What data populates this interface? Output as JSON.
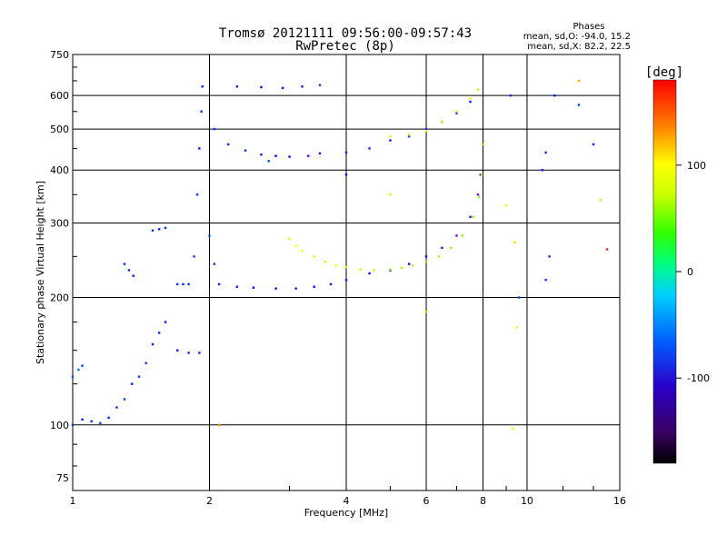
{
  "chart_data": {
    "type": "scatter",
    "title": "Tromsø 20121111 09:56:00-09:57:43",
    "subtitle": "RwPretec (8p)",
    "xlabel": "Frequency [MHz]",
    "ylabel": "Stationary phase Virtual Height [km]",
    "x_scale": "log",
    "y_scale": "log",
    "xlim": [
      1,
      16
    ],
    "ylim": [
      70,
      750
    ],
    "x_ticks": [
      1,
      2,
      4,
      6,
      8,
      10,
      16
    ],
    "x_tick_labels": [
      "1",
      "2",
      "4",
      "6",
      "8",
      "10",
      "16"
    ],
    "y_ticks": [
      75,
      100,
      200,
      300,
      400,
      500,
      600,
      750
    ],
    "y_tick_labels": [
      "75",
      "100",
      "200",
      "300",
      "400",
      "500",
      "600",
      "750"
    ],
    "grid": true,
    "stats": {
      "heading": "Phases",
      "line_o": "mean, sd,O: -94.0, 15.2",
      "line_x": "mean, sd,X:  82.2, 22.5"
    },
    "colorbar": {
      "label": "[deg]",
      "ticks": [
        100,
        0,
        -100
      ],
      "tick_labels": [
        "100",
        "0",
        "-100"
      ],
      "range": [
        -180,
        180
      ],
      "colormap": "rainbow"
    },
    "series": [
      {
        "points": [
          {
            "x": 1.0,
            "y": 130,
            "c": -85
          },
          {
            "x": 1.03,
            "y": 135,
            "c": -80
          },
          {
            "x": 1.05,
            "y": 138,
            "c": -90
          },
          {
            "x": 1.0,
            "y": 100,
            "c": -95
          },
          {
            "x": 1.05,
            "y": 103,
            "c": -100
          },
          {
            "x": 1.1,
            "y": 102,
            "c": -95
          },
          {
            "x": 1.15,
            "y": 101,
            "c": -90
          },
          {
            "x": 1.2,
            "y": 104,
            "c": -100
          },
          {
            "x": 1.25,
            "y": 110,
            "c": -95
          },
          {
            "x": 1.3,
            "y": 115,
            "c": -90
          },
          {
            "x": 1.35,
            "y": 125,
            "c": -100
          },
          {
            "x": 1.4,
            "y": 130,
            "c": -95
          },
          {
            "x": 1.45,
            "y": 140,
            "c": -90
          },
          {
            "x": 1.5,
            "y": 155,
            "c": -100
          },
          {
            "x": 1.55,
            "y": 165,
            "c": -95
          },
          {
            "x": 1.6,
            "y": 175,
            "c": -100
          },
          {
            "x": 1.3,
            "y": 240,
            "c": -95
          },
          {
            "x": 1.33,
            "y": 232,
            "c": -95
          },
          {
            "x": 1.36,
            "y": 225,
            "c": -100
          },
          {
            "x": 1.5,
            "y": 288,
            "c": -95
          },
          {
            "x": 1.55,
            "y": 290,
            "c": -100
          },
          {
            "x": 1.6,
            "y": 292,
            "c": -95
          },
          {
            "x": 1.7,
            "y": 215,
            "c": -95
          },
          {
            "x": 1.75,
            "y": 215,
            "c": -100
          },
          {
            "x": 1.8,
            "y": 215,
            "c": -95
          },
          {
            "x": 1.7,
            "y": 150,
            "c": -100
          },
          {
            "x": 1.8,
            "y": 148,
            "c": -95
          },
          {
            "x": 1.9,
            "y": 148,
            "c": -95
          },
          {
            "x": 1.85,
            "y": 250,
            "c": -90
          },
          {
            "x": 1.88,
            "y": 350,
            "c": -95
          },
          {
            "x": 1.9,
            "y": 450,
            "c": -100
          },
          {
            "x": 1.92,
            "y": 550,
            "c": -95
          },
          {
            "x": 1.93,
            "y": 630,
            "c": -100
          },
          {
            "x": 2.0,
            "y": 280,
            "c": -85
          },
          {
            "x": 2.05,
            "y": 240,
            "c": -90
          },
          {
            "x": 2.05,
            "y": 500,
            "c": -95
          },
          {
            "x": 2.2,
            "y": 460,
            "c": -95
          },
          {
            "x": 2.4,
            "y": 445,
            "c": -95
          },
          {
            "x": 2.6,
            "y": 435,
            "c": -100
          },
          {
            "x": 2.8,
            "y": 432,
            "c": -110
          },
          {
            "x": 3.0,
            "y": 430,
            "c": -120
          },
          {
            "x": 3.3,
            "y": 432,
            "c": -130
          },
          {
            "x": 3.5,
            "y": 438,
            "c": -120
          },
          {
            "x": 2.1,
            "y": 215,
            "c": -100
          },
          {
            "x": 2.3,
            "y": 212,
            "c": -100
          },
          {
            "x": 2.5,
            "y": 211,
            "c": -105
          },
          {
            "x": 2.8,
            "y": 210,
            "c": -115
          },
          {
            "x": 3.1,
            "y": 210,
            "c": -125
          },
          {
            "x": 3.4,
            "y": 212,
            "c": -115
          },
          {
            "x": 3.7,
            "y": 215,
            "c": -105
          },
          {
            "x": 4.0,
            "y": 220,
            "c": -100
          },
          {
            "x": 4.5,
            "y": 228,
            "c": -100
          },
          {
            "x": 5.0,
            "y": 232,
            "c": -105
          },
          {
            "x": 5.5,
            "y": 240,
            "c": -110
          },
          {
            "x": 6.0,
            "y": 250,
            "c": -120
          },
          {
            "x": 6.5,
            "y": 262,
            "c": -130
          },
          {
            "x": 7.0,
            "y": 280,
            "c": -140
          },
          {
            "x": 7.5,
            "y": 310,
            "c": -150
          },
          {
            "x": 7.8,
            "y": 350,
            "c": -140
          },
          {
            "x": 7.9,
            "y": 390,
            "c": -130
          },
          {
            "x": 2.3,
            "y": 630,
            "c": -100
          },
          {
            "x": 2.6,
            "y": 628,
            "c": -105
          },
          {
            "x": 2.9,
            "y": 625,
            "c": -120
          },
          {
            "x": 3.2,
            "y": 630,
            "c": -130
          },
          {
            "x": 3.5,
            "y": 635,
            "c": -140
          },
          {
            "x": 4.0,
            "y": 440,
            "c": -100
          },
          {
            "x": 4.5,
            "y": 450,
            "c": -95
          },
          {
            "x": 5.0,
            "y": 470,
            "c": -100
          },
          {
            "x": 5.5,
            "y": 480,
            "c": -90
          },
          {
            "x": 6.0,
            "y": 500,
            "c": -95
          },
          {
            "x": 6.5,
            "y": 520,
            "c": -100
          },
          {
            "x": 7.0,
            "y": 545,
            "c": -95
          },
          {
            "x": 7.5,
            "y": 580,
            "c": -100
          }
        ]
      },
      {
        "points": [
          {
            "x": 3.0,
            "y": 275,
            "c": 115
          },
          {
            "x": 3.1,
            "y": 265,
            "c": 110
          },
          {
            "x": 3.2,
            "y": 258,
            "c": 105
          },
          {
            "x": 3.4,
            "y": 250,
            "c": 100
          },
          {
            "x": 3.6,
            "y": 243,
            "c": 95
          },
          {
            "x": 3.8,
            "y": 238,
            "c": 100
          },
          {
            "x": 4.0,
            "y": 236,
            "c": 95
          },
          {
            "x": 4.3,
            "y": 233,
            "c": 90
          },
          {
            "x": 4.6,
            "y": 232,
            "c": 85
          },
          {
            "x": 5.0,
            "y": 233,
            "c": 80
          },
          {
            "x": 5.3,
            "y": 235,
            "c": 85
          },
          {
            "x": 5.6,
            "y": 238,
            "c": 80
          },
          {
            "x": 6.0,
            "y": 243,
            "c": 75
          },
          {
            "x": 6.4,
            "y": 250,
            "c": 80
          },
          {
            "x": 6.8,
            "y": 262,
            "c": 75
          },
          {
            "x": 7.2,
            "y": 280,
            "c": 70
          },
          {
            "x": 7.6,
            "y": 310,
            "c": 65
          },
          {
            "x": 7.85,
            "y": 345,
            "c": 75
          },
          {
            "x": 7.95,
            "y": 390,
            "c": 80
          },
          {
            "x": 8.0,
            "y": 460,
            "c": 70
          },
          {
            "x": 5.0,
            "y": 480,
            "c": 95
          },
          {
            "x": 5.5,
            "y": 485,
            "c": 90
          },
          {
            "x": 6.0,
            "y": 495,
            "c": 100
          },
          {
            "x": 6.5,
            "y": 520,
            "c": 95
          },
          {
            "x": 7.0,
            "y": 550,
            "c": 90
          },
          {
            "x": 7.5,
            "y": 590,
            "c": 100
          },
          {
            "x": 7.8,
            "y": 620,
            "c": 95
          }
        ]
      },
      {
        "points": [
          {
            "x": 9.4,
            "y": 270,
            "c": 120
          },
          {
            "x": 9.6,
            "y": 200,
            "c": -90
          },
          {
            "x": 9.5,
            "y": 170,
            "c": 100
          },
          {
            "x": 9.3,
            "y": 98,
            "c": 110
          },
          {
            "x": 11.2,
            "y": 250,
            "c": -95
          },
          {
            "x": 11.0,
            "y": 220,
            "c": -90
          },
          {
            "x": 10.8,
            "y": 400,
            "c": -100
          },
          {
            "x": 11.0,
            "y": 440,
            "c": -95
          },
          {
            "x": 11.5,
            "y": 600,
            "c": -100
          },
          {
            "x": 13.0,
            "y": 570,
            "c": -90
          },
          {
            "x": 13.0,
            "y": 650,
            "c": 130
          },
          {
            "x": 14.0,
            "y": 460,
            "c": -100
          },
          {
            "x": 14.5,
            "y": 340,
            "c": 120
          },
          {
            "x": 15.0,
            "y": 260,
            "c": 170
          },
          {
            "x": 9.2,
            "y": 600,
            "c": -95
          },
          {
            "x": 9.0,
            "y": 330,
            "c": 100
          },
          {
            "x": 5.0,
            "y": 350,
            "c": 95
          },
          {
            "x": 2.7,
            "y": 420,
            "c": -90
          },
          {
            "x": 2.1,
            "y": 100,
            "c": 140
          },
          {
            "x": 6.0,
            "y": 185,
            "c": 120
          },
          {
            "x": 4.0,
            "y": 390,
            "c": -100
          }
        ]
      }
    ]
  }
}
